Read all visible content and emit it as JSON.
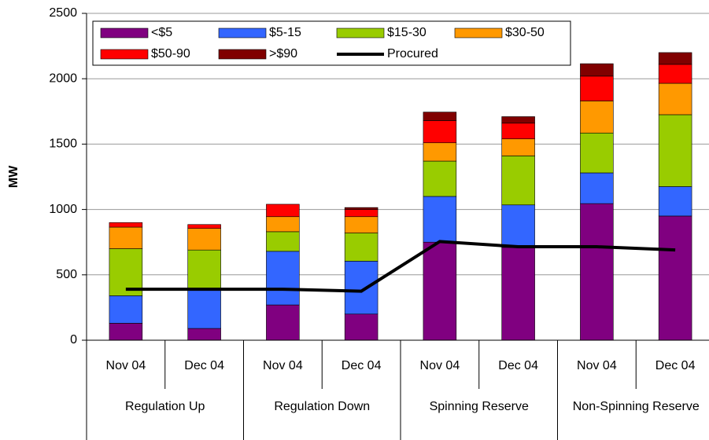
{
  "chart_data": {
    "type": "stacked-bar-line",
    "y_label": "MW",
    "categories": [
      "Nov 04",
      "Dec 04",
      "Nov 04",
      "Dec 04",
      "Nov 04",
      "Dec 04",
      "Nov 04",
      "Dec 04"
    ],
    "groups": [
      "Regulation Up",
      "Regulation Down",
      "Spinning Reserve",
      "Non-Spinning Reserve"
    ],
    "series": [
      {
        "name": "<$5",
        "color": "#800080",
        "values": [
          130,
          90,
          270,
          200,
          750,
          710,
          1045,
          950
        ]
      },
      {
        "name": "$5-15",
        "color": "#3366ff",
        "values": [
          210,
          295,
          410,
          405,
          350,
          325,
          235,
          225
        ]
      },
      {
        "name": "$15-30",
        "color": "#99cc00",
        "values": [
          360,
          305,
          150,
          215,
          270,
          375,
          305,
          550
        ]
      },
      {
        "name": "$30-50",
        "color": "#ff9900",
        "values": [
          165,
          165,
          115,
          125,
          140,
          130,
          245,
          240
        ]
      },
      {
        "name": "$50-90",
        "color": "#ff0000",
        "values": [
          35,
          30,
          95,
          55,
          170,
          120,
          190,
          145
        ]
      },
      {
        "name": ">$90",
        "color": "#800000",
        "values": [
          0,
          0,
          0,
          15,
          65,
          50,
          95,
          90
        ]
      }
    ],
    "line_series": {
      "name": "Procured",
      "color": "#000000",
      "values": [
        390,
        390,
        390,
        375,
        755,
        715,
        715,
        690
      ]
    },
    "ylim": [
      0,
      2500
    ],
    "yticks": [
      0,
      500,
      1000,
      1500,
      2000,
      2500
    ],
    "grid": true
  }
}
